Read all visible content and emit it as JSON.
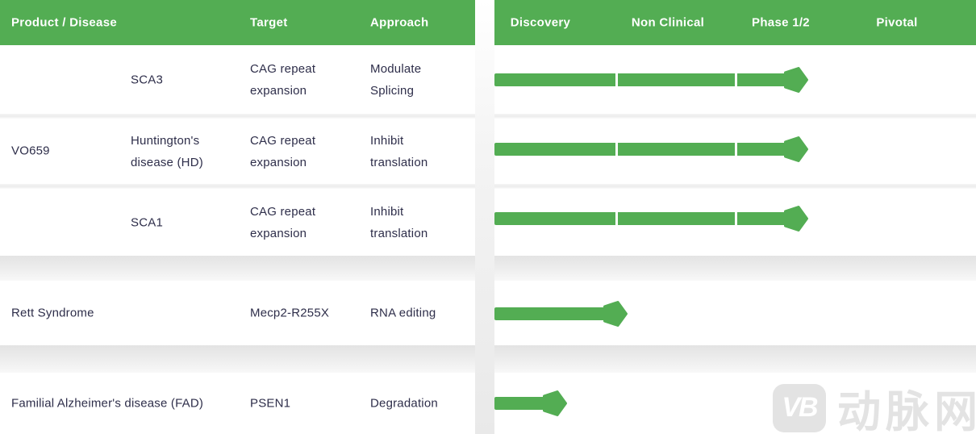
{
  "chart_data": {
    "type": "table",
    "phase_columns": [
      "Discovery",
      "Non Clinical",
      "Phase 1/2",
      "Pivotal"
    ],
    "rows": [
      {
        "product": "VO659",
        "disease": "SCA3",
        "target": "CAG repeat expansion",
        "approach": "Modulate Splicing",
        "phase_reached": "Phase 1/2",
        "progress_fraction": 0.652
      },
      {
        "product": "VO659",
        "disease": "Huntington's disease (HD)",
        "target": "CAG repeat expansion",
        "approach": "Inhibit translation",
        "phase_reached": "Phase 1/2",
        "progress_fraction": 0.652
      },
      {
        "product": "VO659",
        "disease": "SCA1",
        "target": "CAG repeat expansion",
        "approach": "Inhibit translation",
        "phase_reached": "Phase 1/2",
        "progress_fraction": 0.652
      },
      {
        "product": "Rett Syndrome",
        "disease": "",
        "target": "Mecp2-R255X",
        "approach": "RNA editing",
        "phase_reached": "Discovery (complete)",
        "progress_fraction": 0.276
      },
      {
        "product": "Familial Alzheimer's disease (FAD)",
        "disease": "",
        "target": "PSEN1",
        "approach": "Degradation",
        "phase_reached": "Discovery (mid)",
        "progress_fraction": 0.151
      }
    ]
  },
  "left_table": {
    "header": {
      "product_disease": "Product / Disease",
      "target": "Target",
      "approach": "Approach"
    },
    "group1": {
      "product": "VO659",
      "rows": [
        {
          "disease": [
            "SCA3"
          ],
          "target": [
            "CAG repeat",
            "expansion"
          ],
          "approach": [
            "Modulate",
            "Splicing"
          ]
        },
        {
          "disease": [
            "Huntington's",
            "disease (HD)"
          ],
          "target": [
            "CAG repeat",
            "expansion"
          ],
          "approach": [
            "Inhibit",
            "translation"
          ]
        },
        {
          "disease": [
            "SCA1"
          ],
          "target": [
            "CAG repeat",
            "expansion"
          ],
          "approach": [
            "Inhibit",
            "translation"
          ]
        }
      ]
    },
    "group2": {
      "product": "Rett Syndrome",
      "target": "Mecp2-R255X",
      "approach": "RNA editing"
    },
    "group3": {
      "product": "Familial Alzheimer's disease (FAD)",
      "target": "PSEN1",
      "approach": "Degradation"
    }
  },
  "pipeline": {
    "phases": [
      "Discovery",
      "Non Clinical",
      "Phase 1/2",
      "Pivotal"
    ],
    "bars": [
      {
        "row": "SCA3",
        "progress": 0.652
      },
      {
        "row": "Huntington's disease (HD)",
        "progress": 0.652
      },
      {
        "row": "SCA1",
        "progress": 0.652
      },
      {
        "row": "Rett Syndrome",
        "progress": 0.276
      },
      {
        "row": "Familial Alzheimer's disease (FAD)",
        "progress": 0.151
      }
    ]
  },
  "watermark": {
    "logo": "VB",
    "text": "动脉网"
  },
  "theme": {
    "green": "#53ad53",
    "text_dark": "#2e2e4a",
    "header_text": "#ffffff",
    "watermark_gray": "#e3e3e3"
  }
}
